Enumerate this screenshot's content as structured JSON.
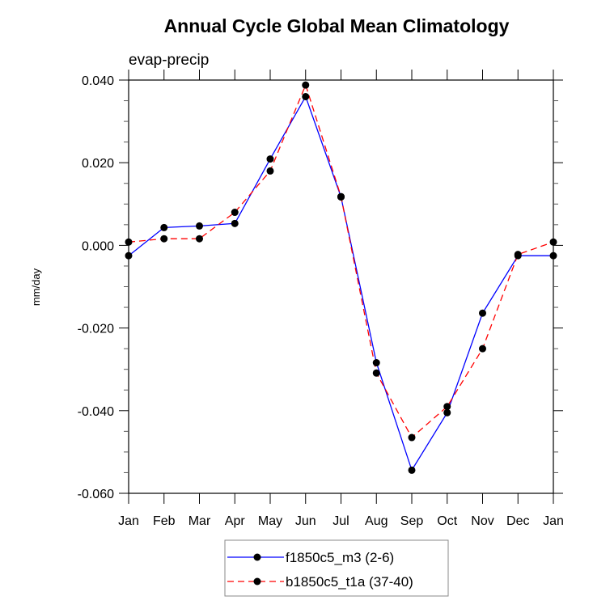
{
  "chart_data": {
    "type": "line",
    "title": "Annual Cycle Global Mean Climatology",
    "subtitle": "evap-precip",
    "xlabel": "",
    "ylabel": "mm/day",
    "categories": [
      "Jan",
      "Feb",
      "Mar",
      "Apr",
      "May",
      "Jun",
      "Jul",
      "Aug",
      "Sep",
      "Oct",
      "Nov",
      "Dec",
      "Jan"
    ],
    "ylim": [
      -0.06,
      0.04
    ],
    "yticks": [
      -0.06,
      -0.04,
      -0.02,
      0.0,
      0.02,
      0.04
    ],
    "ytick_labels": [
      "-0.060",
      "-0.040",
      "-0.020",
      "0.000",
      "0.020",
      "0.040"
    ],
    "yminor_step": 0.005,
    "grid": false,
    "legend_position": "bottom-center",
    "series": [
      {
        "name": "f1850c5_m3 (2-6)",
        "color": "#0000ff",
        "line_style": "solid",
        "marker": "filled-circle",
        "values": [
          -0.0025,
          0.0043,
          0.0047,
          0.0053,
          0.0209,
          0.036,
          0.0117,
          -0.0284,
          -0.0544,
          -0.0405,
          -0.0164,
          -0.0025,
          -0.0025
        ]
      },
      {
        "name": "b1850c5_t1a (37-40)",
        "color": "#ff0000",
        "line_style": "dashed",
        "marker": "filled-circle",
        "values": [
          0.0008,
          0.0016,
          0.0016,
          0.008,
          0.018,
          0.0388,
          0.0118,
          -0.0309,
          -0.0465,
          -0.039,
          -0.025,
          -0.0022,
          0.0008
        ]
      }
    ]
  }
}
